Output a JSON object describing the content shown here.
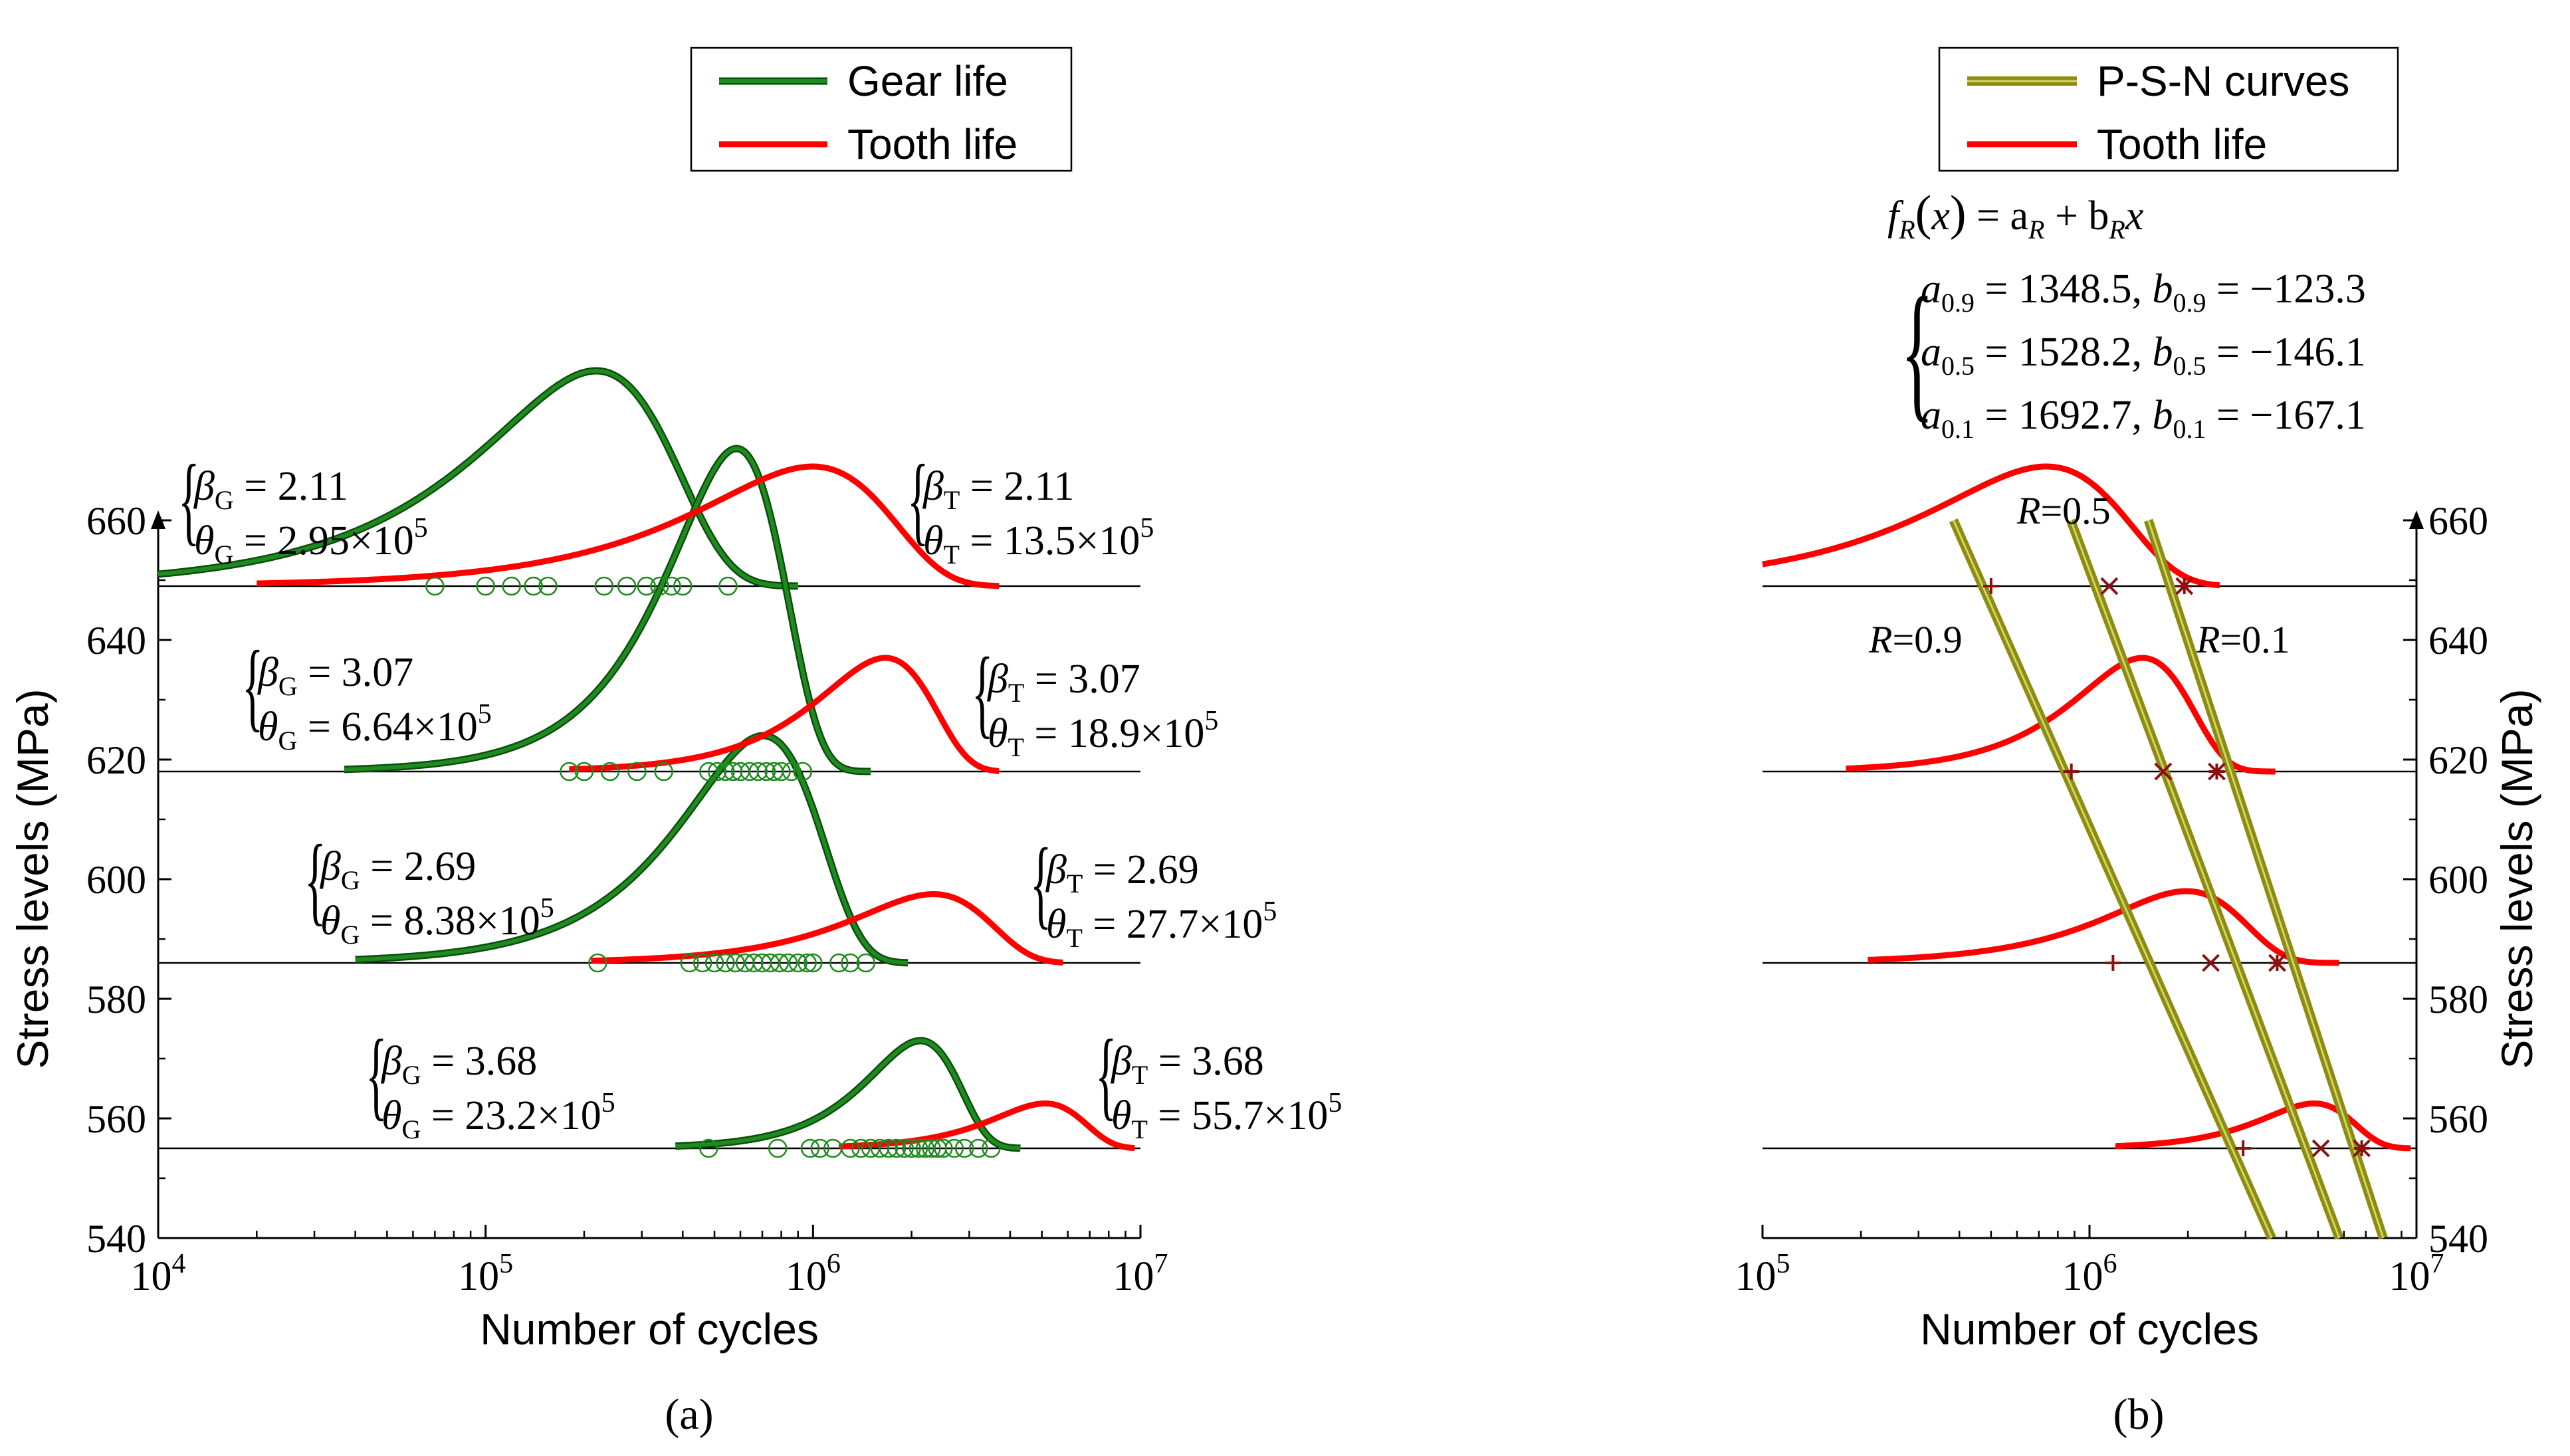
{
  "colors": {
    "gear": "#1f8a1f",
    "gear_dark": "#0b4d0b",
    "tooth": "#ff0000",
    "psn": "#8c8c10",
    "psn_light": "#d4d46a",
    "marker": "#8b1010",
    "baseline": "#000000"
  },
  "panel_labels": {
    "a": "(a)",
    "b": "(b)"
  },
  "chart_data": [
    {
      "id": "a",
      "type": "line",
      "xlabel": "Number of cycles",
      "ylabel": "Stress levels (MPa)",
      "xscale": "log",
      "xlim": [
        10000,
        10000000
      ],
      "ylim": [
        540,
        665
      ],
      "x_tick_labels": [
        {
          "base": "10",
          "exp": "4",
          "value": 10000
        },
        {
          "base": "10",
          "exp": "5",
          "value": 100000
        },
        {
          "base": "10",
          "exp": "6",
          "value": 1000000
        },
        {
          "base": "10",
          "exp": "7",
          "value": 10000000
        }
      ],
      "y_ticks": [
        540,
        560,
        580,
        600,
        620,
        640,
        660
      ],
      "legend": {
        "position": "top-right",
        "entries": [
          {
            "label": "Gear life",
            "series": "gear"
          },
          {
            "label": "Tooth life",
            "series": "tooth"
          }
        ]
      },
      "stress_levels": [
        {
          "stress": 649,
          "gear": {
            "beta": 2.11,
            "theta": 295000,
            "start": 10000,
            "end": 900000,
            "peak_mpa": 36
          },
          "tooth": {
            "beta": 2.11,
            "theta": 1350000,
            "start": 20000,
            "end": 3700000,
            "peak_mpa": 20
          },
          "samples": [
            70000,
            100000,
            120000,
            140000,
            155000,
            230000,
            270000,
            310000,
            340000,
            370000,
            400000,
            550000
          ],
          "gear_labels": {
            "beta": "2.11",
            "theta_mant": "2.95",
            "theta_exp": "5"
          },
          "tooth_labels": {
            "beta": "2.11",
            "theta_mant": "13.5",
            "theta_exp": "5"
          }
        },
        {
          "stress": 618,
          "gear": {
            "beta": 3.07,
            "theta": 664000,
            "start": 37000,
            "end": 1500000,
            "peak_mpa": 54
          },
          "tooth": {
            "beta": 3.07,
            "theta": 1890000,
            "start": 180000,
            "end": 3700000,
            "peak_mpa": 19
          },
          "samples": [
            180000,
            200000,
            240000,
            290000,
            350000,
            480000,
            510000,
            540000,
            570000,
            600000,
            640000,
            680000,
            720000,
            760000,
            800000,
            860000,
            930000
          ],
          "gear_labels": {
            "beta": "3.07",
            "theta_mant": "6.64",
            "theta_exp": "5"
          },
          "tooth_labels": {
            "beta": "3.07",
            "theta_mant": "18.9",
            "theta_exp": "5"
          }
        },
        {
          "stress": 586,
          "gear": {
            "beta": 2.69,
            "theta": 838000,
            "start": 40000,
            "end": 1950000,
            "peak_mpa": 38
          },
          "tooth": {
            "beta": 2.69,
            "theta": 2770000,
            "start": 210000,
            "end": 5800000,
            "peak_mpa": 11.5
          },
          "samples": [
            220000,
            420000,
            460000,
            500000,
            540000,
            580000,
            620000,
            660000,
            700000,
            740000,
            790000,
            840000,
            900000,
            960000,
            1000000,
            1200000,
            1300000,
            1450000
          ],
          "gear_labels": {
            "beta": "2.69",
            "theta_mant": "8.38",
            "theta_exp": "5"
          },
          "tooth_labels": {
            "beta": "2.69",
            "theta_mant": "27.7",
            "theta_exp": "5"
          }
        },
        {
          "stress": 555,
          "gear": {
            "beta": 3.68,
            "theta": 2320000,
            "start": 380000,
            "end": 4300000,
            "peak_mpa": 18
          },
          "tooth": {
            "beta": 3.68,
            "theta": 5570000,
            "start": 1200000,
            "end": 9600000,
            "peak_mpa": 7.5
          },
          "samples": [
            480000,
            780000,
            980000,
            1050000,
            1150000,
            1300000,
            1400000,
            1500000,
            1600000,
            1700000,
            1800000,
            1900000,
            2000000,
            2100000,
            2200000,
            2300000,
            2400000,
            2500000,
            2700000,
            2900000,
            3200000,
            3500000
          ],
          "gear_labels": {
            "beta": "3.68",
            "theta_mant": "23.2",
            "theta_exp": "5"
          },
          "tooth_labels": {
            "beta": "3.68",
            "theta_mant": "55.7",
            "theta_exp": "5"
          }
        }
      ],
      "symbols": {
        "beta_gear": "β",
        "theta_gear": "θ",
        "sub_gear": "G",
        "sub_tooth": "T",
        "times_ten": "×10"
      }
    },
    {
      "id": "b",
      "type": "line",
      "xlabel": "Number of cycles",
      "ylabel": "Stress levels (MPa)",
      "xscale": "log",
      "xlim": [
        100000,
        10000000
      ],
      "ylim": [
        540,
        665
      ],
      "x_tick_labels": [
        {
          "base": "10",
          "exp": "5",
          "value": 100000
        },
        {
          "base": "10",
          "exp": "6",
          "value": 1000000
        },
        {
          "base": "10",
          "exp": "7",
          "value": 10000000
        }
      ],
      "y_ticks": [
        540,
        560,
        580,
        600,
        620,
        640,
        660
      ],
      "legend": {
        "position": "top-right",
        "entries": [
          {
            "label": "P-S-N curves",
            "series": "psn"
          },
          {
            "label": "Tooth life",
            "series": "tooth"
          }
        ]
      },
      "formula": {
        "text": "f_R(x) = a_R + b_R x",
        "params": [
          {
            "sub": "0.9",
            "a": "1348.5",
            "b": "−123.3",
            "a_value": 1348.5,
            "b_value": -123.3
          },
          {
            "sub": "0.5",
            "a": "1528.2",
            "b": "−146.1",
            "a_value": 1528.2,
            "b_value": -146.1
          },
          {
            "sub": "0.1",
            "a": "1692.7",
            "b": "−167.1",
            "a_value": 1692.7,
            "b_value": -167.1
          }
        ]
      },
      "psn_curves": [
        {
          "label_prefix": "R",
          "label_value": "=0.9",
          "R": 0.9,
          "a": 1348.5,
          "b": -123.3
        },
        {
          "label_prefix": "R",
          "label_value": "=0.5",
          "R": 0.5,
          "a": 1528.2,
          "b": -146.1
        },
        {
          "label_prefix": "R",
          "label_value": "=0.1",
          "R": 0.1,
          "a": 1692.7,
          "b": -167.1
        }
      ],
      "tooth_curves": [
        {
          "stress": 649,
          "start": 100000,
          "end": 2500000,
          "theta": 1000000,
          "beta": 2.11,
          "peak_mpa": 20
        },
        {
          "stress": 618,
          "start": 180000,
          "end": 3700000,
          "theta": 1650000,
          "beta": 3.07,
          "peak_mpa": 19
        },
        {
          "stress": 586,
          "start": 210000,
          "end": 5800000,
          "theta": 2350000,
          "beta": 2.69,
          "peak_mpa": 12
        },
        {
          "stress": 555,
          "start": 1200000,
          "end": 9600000,
          "theta": 5300000,
          "beta": 3.68,
          "peak_mpa": 7.5
        }
      ],
      "markers": [
        {
          "stress": 649,
          "points": [
            {
              "x": 500000,
              "kind": "plus"
            },
            {
              "x": 1150000,
              "kind": "cross"
            },
            {
              "x": 1950000,
              "kind": "star"
            }
          ]
        },
        {
          "stress": 618,
          "points": [
            {
              "x": 880000,
              "kind": "plus"
            },
            {
              "x": 1680000,
              "kind": "cross"
            },
            {
              "x": 2450000,
              "kind": "star"
            }
          ]
        },
        {
          "stress": 586,
          "points": [
            {
              "x": 1180000,
              "kind": "plus"
            },
            {
              "x": 2350000,
              "kind": "cross"
            },
            {
              "x": 3750000,
              "kind": "star"
            }
          ]
        },
        {
          "stress": 555,
          "points": [
            {
              "x": 2950000,
              "kind": "plus"
            },
            {
              "x": 5100000,
              "kind": "cross"
            },
            {
              "x": 6800000,
              "kind": "star"
            }
          ]
        }
      ]
    }
  ]
}
